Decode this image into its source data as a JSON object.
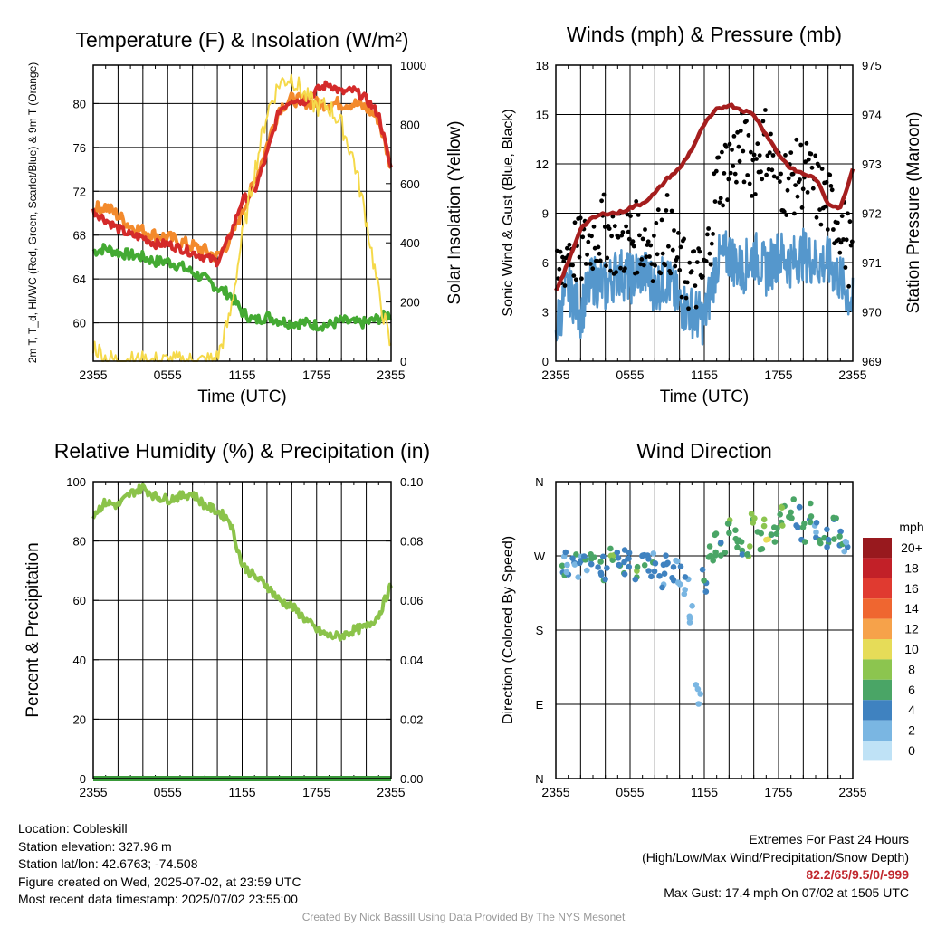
{
  "chart_data": [
    {
      "type": "line",
      "title": "Temperature (F) & Insolation (W/m²)",
      "xlabel": "Time (UTC)",
      "ylabel": "2m T, T_d, HI/WC (Red, Green, Scarlet/Blue) & 9m T (Orange)",
      "ylabel_right": "Solar Insolation (Yellow)",
      "x_ticks": [
        "2355",
        "0555",
        "1155",
        "1755",
        "2355"
      ],
      "y_ticks": [
        "60",
        "64",
        "68",
        "72",
        "76",
        "80"
      ],
      "y_ticks_right": [
        "0",
        "200",
        "400",
        "600",
        "800",
        "1000"
      ],
      "ylim": [
        56.5,
        83.5
      ],
      "ylim_right": [
        0,
        1000
      ],
      "x_hours": [
        0,
        1,
        2,
        3,
        4,
        5,
        6,
        7,
        8,
        9,
        10,
        11,
        12,
        13,
        14,
        15,
        16,
        17,
        18,
        19,
        20,
        21,
        22,
        23,
        24
      ],
      "series": [
        {
          "color": "#44aa33",
          "axis": "left",
          "values": [
            66.5,
            66.8,
            66.4,
            66.2,
            66.0,
            65.6,
            65.6,
            65.2,
            64.6,
            64.0,
            63.2,
            62.6,
            61.0,
            60.2,
            60.6,
            60.2,
            60.0,
            60.0,
            59.8,
            59.8,
            60.2,
            60.0,
            60.0,
            60.4,
            60.8
          ]
        },
        {
          "color": "#f38a2c",
          "axis": "left",
          "values": [
            70.4,
            70.6,
            69.8,
            68.8,
            68.4,
            68.0,
            67.8,
            67.4,
            67.0,
            66.6,
            66.0,
            67.5,
            70.2,
            72.8,
            76.2,
            79.6,
            80.4,
            80.2,
            80.0,
            80.0,
            80.0,
            80.0,
            79.6,
            78.6,
            74.2
          ]
        },
        {
          "color": "#d42a2a",
          "axis": "left",
          "values": [
            70.2,
            69.4,
            68.6,
            68.0,
            67.8,
            67.2,
            67.2,
            66.8,
            66.4,
            66.0,
            65.6,
            67.8,
            71.2,
            72.0,
            75.4,
            79.4,
            80.4,
            80.2,
            81.2,
            81.8,
            81.0,
            81.2,
            80.4,
            79.0,
            74.0
          ]
        },
        {
          "color": "#f5d94a",
          "axis": "right",
          "values": [
            55,
            10,
            0,
            0,
            0,
            0,
            0,
            0,
            0,
            0,
            10,
            150,
            420,
            640,
            840,
            940,
            960,
            900,
            860,
            860,
            800,
            680,
            480,
            230,
            40
          ]
        }
      ]
    },
    {
      "type": "line",
      "title": "Winds (mph) & Pressure (mb)",
      "xlabel": "Time (UTC)",
      "ylabel": "Sonic Wind & Gust (Blue, Black)",
      "ylabel_right": "Station Pressure (Maroon)",
      "x_ticks": [
        "2355",
        "0555",
        "1155",
        "1755",
        "2355"
      ],
      "y_ticks": [
        "0",
        "3",
        "6",
        "9",
        "12",
        "15",
        "18"
      ],
      "y_ticks_right": [
        "969",
        "970",
        "971",
        "972",
        "973",
        "974",
        "975"
      ],
      "ylim": [
        0,
        18
      ],
      "ylim_right": [
        969,
        975
      ],
      "x_hours": [
        0,
        1,
        2,
        3,
        4,
        5,
        6,
        7,
        8,
        9,
        10,
        11,
        12,
        13,
        14,
        15,
        16,
        17,
        18,
        19,
        20,
        21,
        22,
        23,
        24
      ],
      "series": [
        {
          "color": "#5597cc",
          "axis": "left",
          "values": [
            2.0,
            4.5,
            3.0,
            5.0,
            4.5,
            5.5,
            5.0,
            5.5,
            4.5,
            5.0,
            3.5,
            3.0,
            2.5,
            6.0,
            6.5,
            5.5,
            6.5,
            5.5,
            6.5,
            6.0,
            6.5,
            6.0,
            6.0,
            5.0,
            3.5
          ]
        },
        {
          "color": "#000000",
          "axis": "left",
          "style": "points",
          "values": [
            4.5,
            7.0,
            6.5,
            7.5,
            8.0,
            7.0,
            7.5,
            7.5,
            7.0,
            8.0,
            5.5,
            5.0,
            5.0,
            11.0,
            12.0,
            13.0,
            12.0,
            13.5,
            11.0,
            11.0,
            11.5,
            10.5,
            9.5,
            8.5,
            6.0
          ]
        },
        {
          "color": "#a51e1e",
          "axis": "right",
          "values": [
            970.4,
            971.0,
            971.7,
            971.9,
            972.0,
            972.0,
            972.1,
            972.2,
            972.4,
            972.7,
            972.9,
            973.3,
            973.8,
            974.1,
            974.2,
            974.1,
            974.0,
            973.6,
            973.2,
            972.9,
            972.8,
            972.7,
            972.2,
            972.1,
            972.9
          ]
        }
      ]
    },
    {
      "type": "line",
      "title": "Relative Humidity (%) & Precipitation (in)",
      "ylabel": "Percent & Precipitation",
      "x_ticks": [
        "2355",
        "0555",
        "1155",
        "1755",
        "2355"
      ],
      "y_ticks": [
        "0",
        "20",
        "40",
        "60",
        "80",
        "100"
      ],
      "y_ticks_right": [
        "0.00",
        "0.02",
        "0.04",
        "0.06",
        "0.08",
        "0.10"
      ],
      "ylim": [
        0,
        100
      ],
      "ylim_right": [
        0,
        0.1
      ],
      "x_hours": [
        0,
        1,
        2,
        3,
        4,
        5,
        6,
        7,
        8,
        9,
        10,
        11,
        12,
        13,
        14,
        15,
        16,
        17,
        18,
        19,
        20,
        21,
        22,
        23,
        24
      ],
      "series": [
        {
          "color": "#8bc34a",
          "axis": "left",
          "values": [
            89,
            93,
            92,
            96,
            98,
            95,
            94,
            95,
            96,
            92,
            90,
            87,
            72,
            68,
            65,
            60,
            58,
            54,
            50,
            48,
            48,
            50,
            51,
            55,
            65
          ]
        },
        {
          "color": "#3a9a3a",
          "axis": "right",
          "values": [
            0,
            0,
            0,
            0,
            0,
            0,
            0,
            0,
            0,
            0,
            0,
            0,
            0,
            0,
            0,
            0,
            0,
            0,
            0,
            0,
            0,
            0,
            0,
            0,
            0
          ]
        }
      ]
    },
    {
      "type": "scatter",
      "title": "Wind Direction",
      "ylabel": "Direction (Colored By Speed)",
      "x_ticks": [
        "2355",
        "0555",
        "1155",
        "1755",
        "2355"
      ],
      "y_ticks": [
        "N",
        "E",
        "S",
        "W",
        "N"
      ],
      "ylim": [
        0,
        360
      ],
      "legend": {
        "title": "mph",
        "labels": [
          "20+",
          "18",
          "16",
          "14",
          "12",
          "10",
          "8",
          "6",
          "4",
          "2",
          "0"
        ],
        "colors": [
          "#98191e",
          "#c22028",
          "#e03a30",
          "#ef6630",
          "#f6a24a",
          "#e6dc58",
          "#8cc54f",
          "#4aa566",
          "#3f82c0",
          "#7ab6e2",
          "#bfe2f6"
        ]
      },
      "x_hours": [
        0.5,
        1.0,
        1.5,
        2.0,
        2.5,
        3.0,
        3.5,
        4.0,
        4.5,
        5.0,
        5.5,
        6.0,
        6.5,
        7.0,
        7.5,
        8.0,
        8.5,
        9.0,
        9.5,
        10.0,
        10.5,
        11.0,
        11.5,
        12.0,
        12.5,
        13.0,
        13.5,
        14.0,
        14.5,
        15.0,
        15.5,
        16.0,
        16.5,
        17.0,
        17.5,
        18.0,
        18.5,
        19.0,
        19.5,
        20.0,
        20.5,
        21.0,
        21.5,
        22.0,
        22.5,
        23.0,
        23.5
      ],
      "directions": [
        260,
        262,
        258,
        255,
        262,
        265,
        258,
        255,
        270,
        265,
        262,
        260,
        255,
        265,
        258,
        262,
        245,
        260,
        255,
        250,
        230,
        200,
        100,
        240,
        275,
        285,
        280,
        300,
        290,
        285,
        280,
        310,
        290,
        300,
        295,
        310,
        320,
        330,
        315,
        300,
        320,
        305,
        300,
        295,
        305,
        290,
        280
      ],
      "speeds": [
        4,
        3,
        4,
        3,
        4,
        5,
        4,
        4,
        6,
        4,
        5,
        4,
        6,
        4,
        5,
        4,
        3,
        4,
        3,
        3,
        2,
        2,
        2,
        4,
        5,
        6,
        5,
        7,
        6,
        5,
        6,
        7,
        6,
        8,
        6,
        7,
        7,
        6,
        5,
        6,
        5,
        4,
        5,
        4,
        5,
        4,
        3
      ]
    }
  ],
  "info_left": {
    "location": "Location: Cobleskill",
    "elevation": "Station elevation: 327.96 m",
    "latlon": "Station lat/lon: 42.6763; -74.508",
    "created": "Figure created on Wed, 2025-07-02, at 23:59 UTC",
    "recent": "Most recent data timestamp: 2025/07/02 23:55:00"
  },
  "info_right": {
    "extremes_title": "Extremes For Past 24 Hours",
    "extremes_desc": "(High/Low/Max Wind/Precipitation/Snow Depth)",
    "extremes_values": "82.2/65/9.5/0/-999",
    "max_gust": "Max Gust: 17.4 mph On 07/02 at 1505 UTC"
  },
  "credit": "Created By Nick Bassill Using Data Provided By The NYS Mesonet"
}
